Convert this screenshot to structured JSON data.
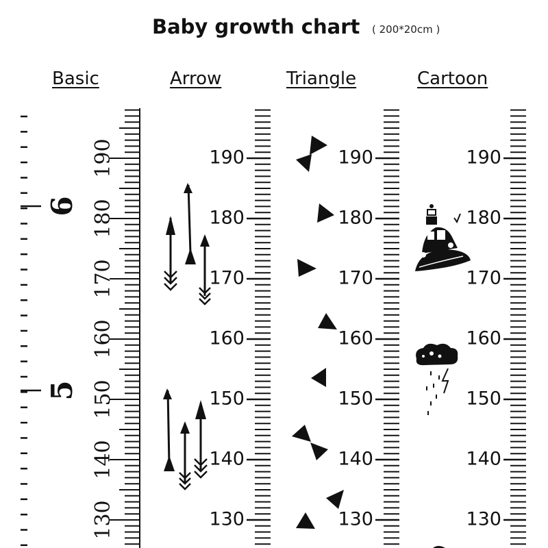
{
  "header": {
    "title": "Baby growth chart",
    "subtitle": "( 200*20cm )"
  },
  "columns": [
    {
      "label": "Basic"
    },
    {
      "label": "Arrow"
    },
    {
      "label": "Triangle"
    },
    {
      "label": "Cartoon"
    }
  ],
  "basic": {
    "cm_labels": [
      "190",
      "180",
      "170",
      "160",
      "150",
      "140",
      "130"
    ],
    "feet_labels": [
      "6",
      "5"
    ]
  },
  "arrow": {
    "cm_labels": [
      "190",
      "180",
      "170",
      "160",
      "150",
      "140",
      "130"
    ]
  },
  "triangle": {
    "cm_labels": [
      "190",
      "180",
      "170",
      "160",
      "150",
      "140",
      "130"
    ]
  },
  "cartoon": {
    "cm_labels": [
      "190",
      "180",
      "170",
      "160",
      "150",
      "140",
      "130"
    ]
  },
  "colors": {
    "ink": "#111111",
    "background": "#ffffff"
  },
  "icons": [
    "arrow-icon",
    "triangle-icon",
    "bowtie-icon",
    "cartoon-car-icon",
    "cloud-icon",
    "lightning-icon"
  ]
}
